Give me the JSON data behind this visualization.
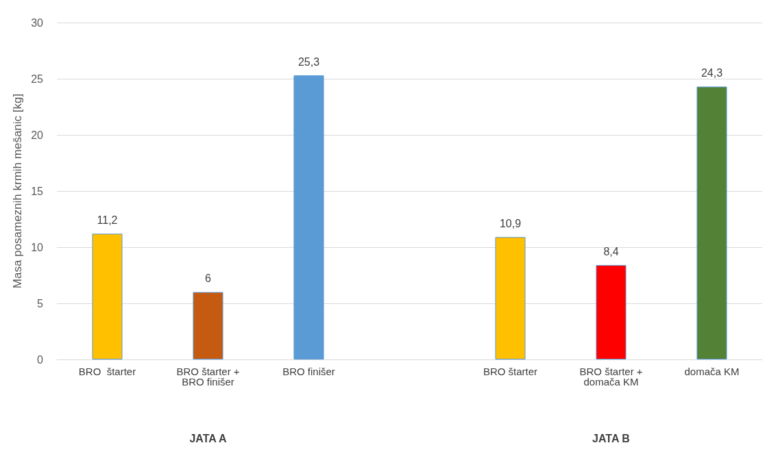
{
  "chart_data": {
    "type": "bar",
    "ylabel": "Masa posameznih krmih mešanic [kg]",
    "categories": [
      "BRO  štarter",
      "BRO štarter +\nBRO finišer",
      "BRO finišer",
      null,
      "BRO štarter",
      "BRO štarter +\ndomača KM",
      "domača KM"
    ],
    "values": [
      11.2,
      6,
      25.3,
      null,
      10.9,
      8.4,
      24.3
    ],
    "colors": [
      "#ffc000",
      "#c55a11",
      "#5b9bd5",
      null,
      "#ffc000",
      "#ff0000",
      "#538135"
    ],
    "value_labels": [
      "11,2",
      "6",
      "25,3",
      null,
      "10,9",
      "8,4",
      "24,3"
    ],
    "ylim": [
      0,
      30
    ],
    "yticks": [
      0,
      5,
      10,
      15,
      20,
      25,
      30
    ],
    "grid": "y",
    "annotations": [
      "JATA A",
      "JATA B"
    ]
  }
}
